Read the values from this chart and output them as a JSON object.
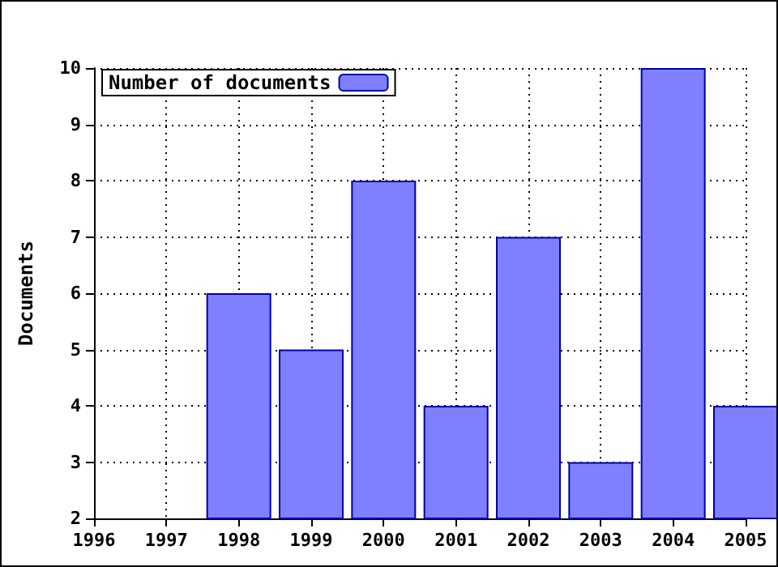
{
  "chart_data": {
    "type": "bar",
    "ylabel": "Documents",
    "x": [
      1998,
      1999,
      2000,
      2001,
      2002,
      2003,
      2004,
      2005
    ],
    "series": [
      {
        "name": "Number of documents",
        "color": "#7f7fff",
        "values": [
          6,
          5,
          8,
          4,
          7,
          3,
          10,
          4
        ]
      }
    ],
    "xlim": [
      1996,
      2005
    ],
    "xticks": [
      1996,
      1997,
      1998,
      1999,
      2000,
      2001,
      2002,
      2003,
      2004,
      2005
    ],
    "ylim": [
      2,
      10
    ],
    "yticks": [
      2,
      3,
      4,
      5,
      6,
      7,
      8,
      9,
      10
    ],
    "grid": true,
    "legend": "top left"
  }
}
